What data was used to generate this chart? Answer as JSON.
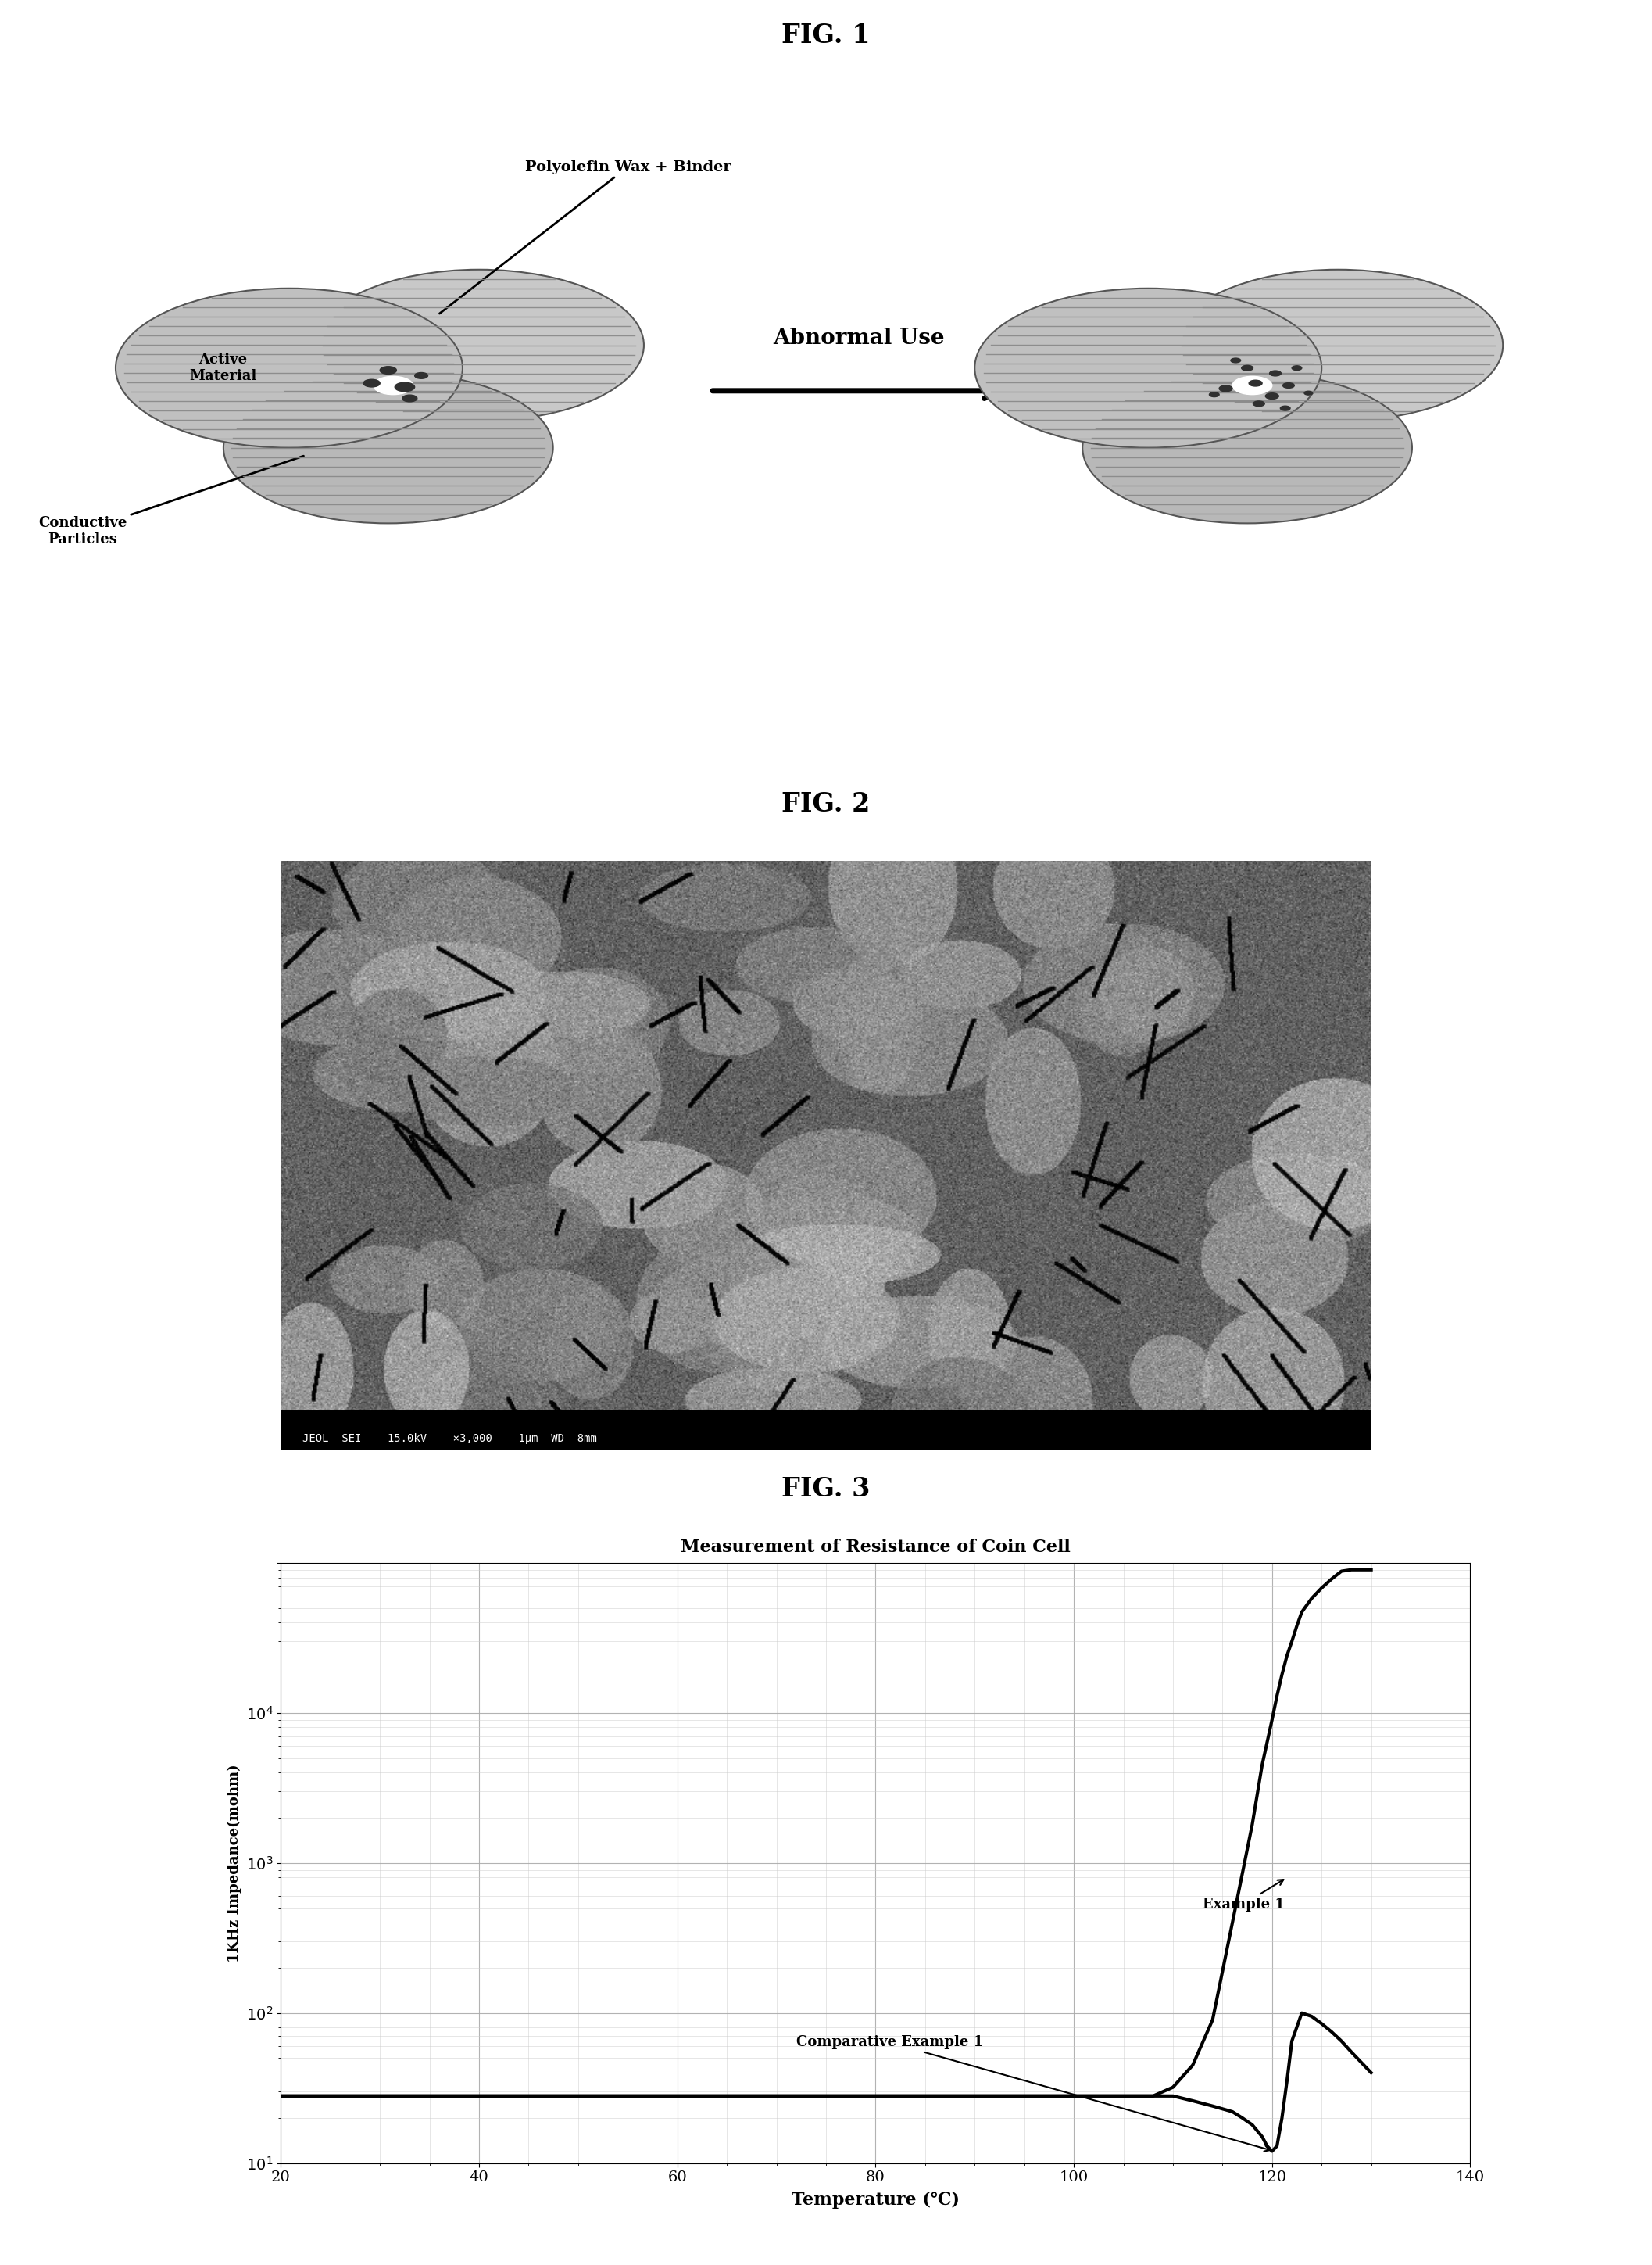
{
  "fig1_title": "FIG. 1",
  "fig2_title": "FIG. 2",
  "fig3_title": "FIG. 3",
  "fig3_plot_title": "Measurement of Resistance of Coin Cell",
  "fig3_xlabel": "Temperature (℃)",
  "fig3_ylabel": "1KHz Impedance(mohm)",
  "fig3_xlim": [
    20,
    140
  ],
  "fig3_ylim_log": [
    10,
    100000
  ],
  "arrow_label": "Abnormal Use",
  "label_polyolefin": "Polyolefin Wax + Binder",
  "label_active": "Active\nMaterial",
  "label_conductive": "Conductive\nParticles",
  "label_example1": "Example 1",
  "label_comp_example1": "Comparative Example 1",
  "bg_color": "#ffffff",
  "example1_x": [
    20,
    25,
    30,
    35,
    40,
    45,
    50,
    55,
    60,
    65,
    70,
    75,
    80,
    85,
    90,
    95,
    100,
    105,
    108,
    110,
    112,
    114,
    116,
    118,
    119,
    120,
    120.5,
    121,
    121.5,
    122,
    122.5,
    123,
    124,
    125,
    126,
    127,
    128,
    129,
    130
  ],
  "example1_y": [
    28,
    28,
    28,
    28,
    28,
    28,
    28,
    28,
    28,
    28,
    28,
    28,
    28,
    28,
    28,
    28,
    28,
    28,
    28,
    32,
    45,
    90,
    400,
    1800,
    4500,
    9000,
    13000,
    18000,
    24000,
    30000,
    38000,
    47000,
    58000,
    68000,
    78000,
    88000,
    90000,
    90000,
    90000
  ],
  "comp_example1_x": [
    20,
    25,
    30,
    35,
    40,
    45,
    50,
    55,
    60,
    65,
    70,
    75,
    80,
    85,
    90,
    95,
    100,
    105,
    108,
    110,
    112,
    114,
    116,
    117,
    118,
    119,
    119.5,
    120,
    120.5,
    121,
    121.5,
    122,
    123,
    124,
    125,
    126,
    127,
    128,
    130
  ],
  "comp_example1_y": [
    28,
    28,
    28,
    28,
    28,
    28,
    28,
    28,
    28,
    28,
    28,
    28,
    28,
    28,
    28,
    28,
    28,
    28,
    28,
    28,
    26,
    24,
    22,
    20,
    18,
    15,
    13,
    12,
    13,
    20,
    35,
    65,
    100,
    95,
    85,
    75,
    65,
    55,
    40
  ],
  "sem_status": "JEOL  SEI    15.0kV    ×3,000    1μm  WD  8mm"
}
